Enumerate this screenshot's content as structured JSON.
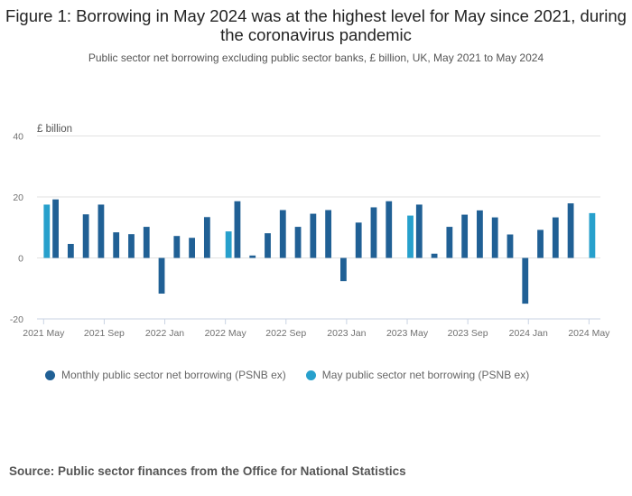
{
  "title": "Figure 1: Borrowing in May 2024 was at the highest level for May since 2021, during the coronavirus pandemic",
  "subtitle": "Public sector net borrowing excluding public sector banks, £ billion, UK, May 2021 to May 2024",
  "source": "Source: Public sector finances from the Office for National Statistics",
  "chart_data": {
    "type": "bar",
    "title": "Figure 1: Borrowing in May 2024 was at the highest level for May since 2021, during the coronavirus pandemic",
    "subtitle": "Public sector net borrowing excluding public sector banks, £ billion, UK, May 2021 to May 2024",
    "xlabel": "",
    "ylabel": "£ billion",
    "ylim": [
      -20,
      40
    ],
    "yticks": [
      40,
      20,
      0,
      -20
    ],
    "grid": true,
    "legend_position": "bottom-left",
    "xtick_labels": [
      "2021 May",
      "2021 Sep",
      "2022 Jan",
      "2022 May",
      "2022 Sep",
      "2023 Jan",
      "2023 May",
      "2023 Sep",
      "2024 Jan",
      "2024 May"
    ],
    "categories": [
      "2021 May",
      "2021 Jun",
      "2021 Jul",
      "2021 Aug",
      "2021 Sep",
      "2021 Oct",
      "2021 Nov",
      "2021 Dec",
      "2022 Jan",
      "2022 Feb",
      "2022 Mar",
      "2022 Apr",
      "2022 May",
      "2022 Jun",
      "2022 Jul",
      "2022 Aug",
      "2022 Sep",
      "2022 Oct",
      "2022 Nov",
      "2022 Dec",
      "2023 Jan",
      "2023 Feb",
      "2023 Mar",
      "2023 Apr",
      "2023 May",
      "2023 Jun",
      "2023 Jul",
      "2023 Aug",
      "2023 Sep",
      "2023 Oct",
      "2023 Nov",
      "2023 Dec",
      "2024 Jan",
      "2024 Feb",
      "2024 Mar",
      "2024 Apr",
      "2024 May"
    ],
    "series": [
      {
        "name": "Monthly public sector net borrowing (PSNB ex)",
        "color": "#206095",
        "values": [
          null,
          19.2,
          4.6,
          14.3,
          17.5,
          8.4,
          7.8,
          10.2,
          -11.7,
          7.2,
          6.6,
          13.4,
          null,
          18.6,
          0.8,
          8.1,
          15.7,
          10.2,
          14.5,
          15.7,
          -7.6,
          11.6,
          16.6,
          18.6,
          null,
          17.5,
          1.4,
          10.2,
          14.2,
          15.6,
          13.3,
          7.7,
          -15.0,
          9.2,
          13.3,
          17.9,
          null
        ]
      },
      {
        "name": "May public sector net borrowing (PSNB ex)",
        "color": "#27a0cc",
        "values": [
          17.5,
          null,
          null,
          null,
          null,
          null,
          null,
          null,
          null,
          null,
          null,
          null,
          8.7,
          null,
          null,
          null,
          null,
          null,
          null,
          null,
          null,
          null,
          null,
          null,
          13.9,
          null,
          null,
          null,
          null,
          null,
          null,
          null,
          null,
          null,
          null,
          null,
          14.7
        ]
      }
    ]
  }
}
